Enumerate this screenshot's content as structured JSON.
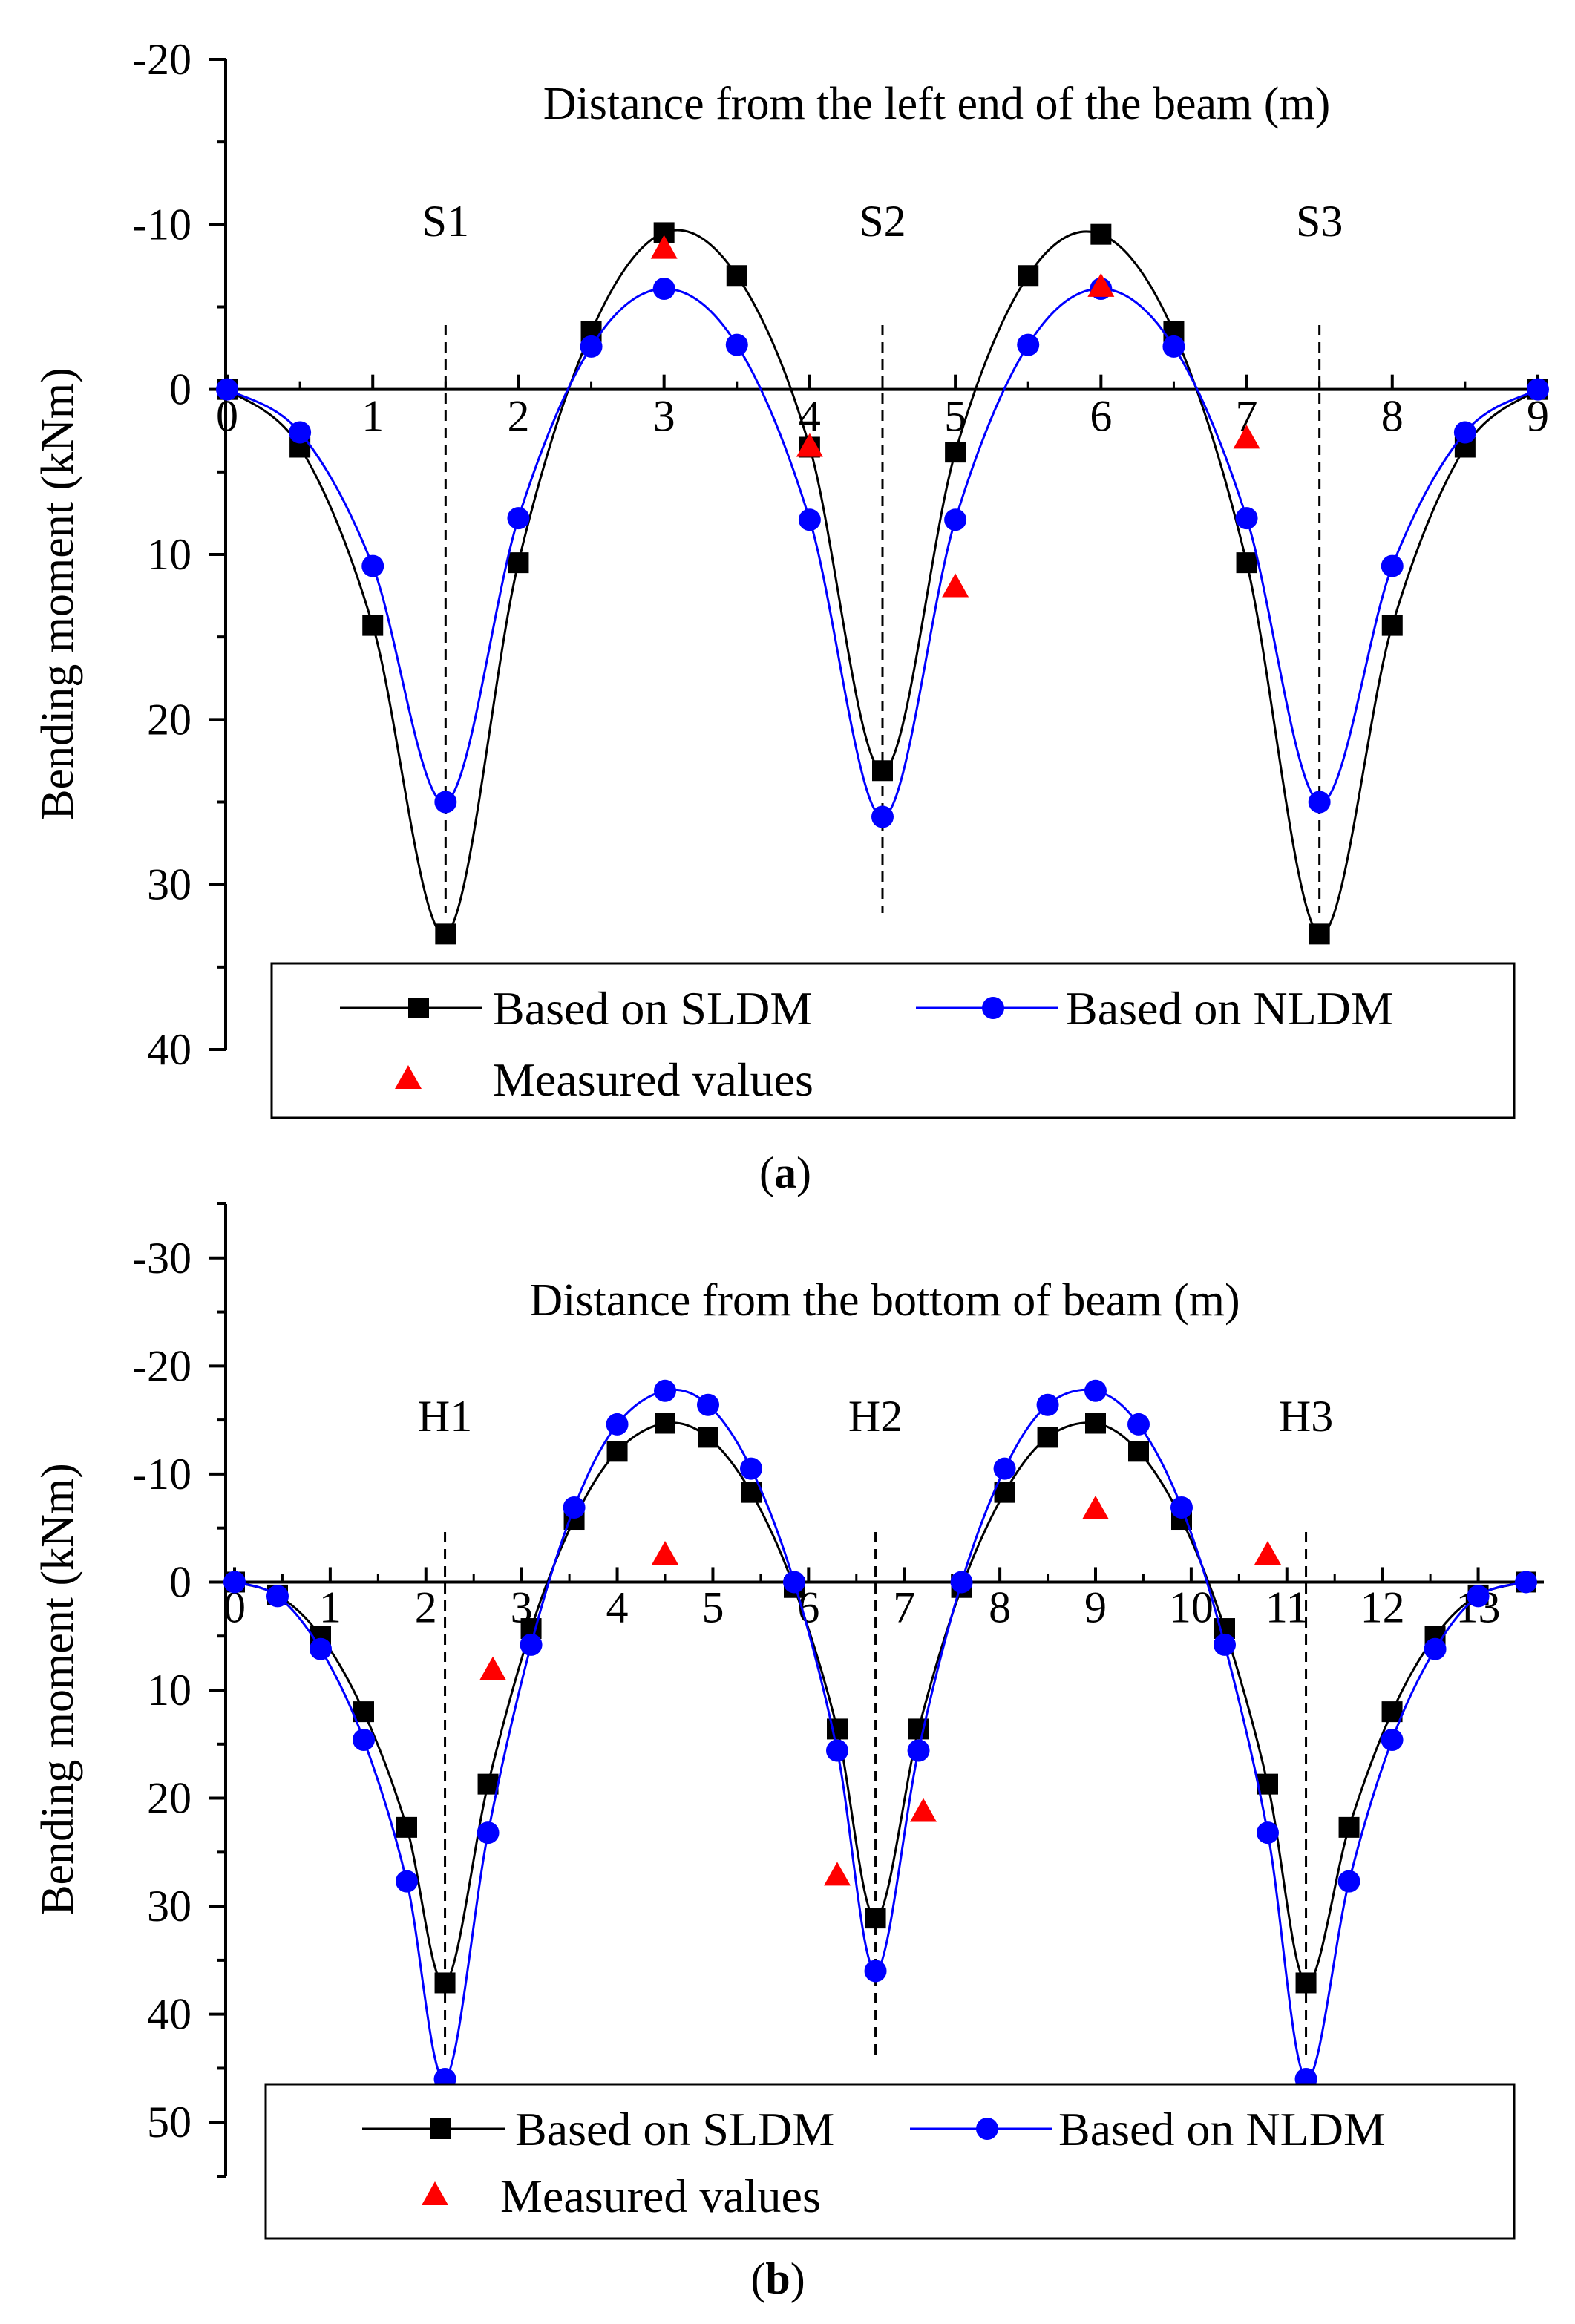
{
  "chart_data": [
    {
      "panel_label": "a",
      "type": "line",
      "title": "Distance from the left end of the beam (m)",
      "xlabel": "Distance from the left end of the beam (m)",
      "ylabel": "Bending moment (kNm)",
      "xlim": [
        0,
        9
      ],
      "ylim": [
        40,
        -20
      ],
      "y_inverted": true,
      "x_ticks": [
        0,
        1,
        2,
        3,
        4,
        5,
        6,
        7,
        8,
        9
      ],
      "y_ticks": [
        -20,
        -10,
        0,
        10,
        20,
        30,
        40
      ],
      "supports": [
        {
          "label": "S1",
          "x": 1.5
        },
        {
          "label": "S2",
          "x": 4.5
        },
        {
          "label": "S3",
          "x": 7.5
        }
      ],
      "legend": {
        "sldm": "Based on SLDM",
        "nldm": "Based on NLDM",
        "measured": "Measured values"
      },
      "series": [
        {
          "name": "Based on SLDM",
          "color": "#000000",
          "marker": "square",
          "x": [
            0,
            0.5,
            1,
            1.5,
            2,
            2.5,
            3,
            3.5,
            4,
            4.5,
            5,
            5.5,
            6,
            6.5,
            7,
            7.5,
            8,
            8.5,
            9
          ],
          "values": [
            0,
            3.5,
            14.3,
            33,
            10.5,
            -3.5,
            -9.5,
            -6.9,
            3.5,
            23.1,
            3.8,
            -6.9,
            -9.4,
            -3.5,
            10.5,
            33,
            14.3,
            3.5,
            0
          ]
        },
        {
          "name": "Based on NLDM",
          "color": "#0000ff",
          "marker": "circle",
          "x": [
            0,
            0.5,
            1,
            1.5,
            2,
            2.5,
            3,
            3.5,
            4,
            4.5,
            5,
            5.5,
            6,
            6.5,
            7,
            7.5,
            8,
            8.5,
            9
          ],
          "values": [
            0,
            2.6,
            10.7,
            25,
            7.8,
            -2.6,
            -6.1,
            -2.7,
            7.9,
            25.9,
            7.9,
            -2.7,
            -6.1,
            -2.6,
            7.8,
            25,
            10.7,
            2.6,
            0
          ]
        },
        {
          "name": "Measured values",
          "color": "#ff0000",
          "marker": "triangle",
          "x": [
            3,
            4,
            5,
            6,
            7
          ],
          "values": [
            -8.5,
            3.5,
            12,
            -6.2,
            3
          ]
        }
      ],
      "caption": "(a)"
    },
    {
      "panel_label": "b",
      "type": "line",
      "title": "Distance from the bottom of beam (m)",
      "xlabel": "Distance from the bottom of beam (m)",
      "ylabel": "Bending moment (kNm)",
      "xlim": [
        0,
        13.5
      ],
      "ylim": [
        55,
        -35
      ],
      "y_inverted": true,
      "x_ticks": [
        0,
        1,
        2,
        3,
        4,
        5,
        6,
        7,
        8,
        9,
        10,
        11,
        12,
        13
      ],
      "y_ticks": [
        -30,
        -20,
        -10,
        0,
        10,
        20,
        30,
        40,
        50
      ],
      "supports": [
        {
          "label": "H1",
          "x": 2.2
        },
        {
          "label": "H2",
          "x": 6.7
        },
        {
          "label": "H3",
          "x": 11.2
        }
      ],
      "legend": {
        "sldm": "Based on SLDM",
        "nldm": "Based on NLDM",
        "measured": "Measured values"
      },
      "series": [
        {
          "name": "Based on SLDM",
          "color": "#000000",
          "marker": "square",
          "x": [
            0,
            0.45,
            0.9,
            1.35,
            1.8,
            2.2,
            2.65,
            3.1,
            3.55,
            4.0,
            4.5,
            4.95,
            5.4,
            5.85,
            6.3,
            6.7,
            7.15,
            7.6,
            8.05,
            8.5,
            9.0,
            9.45,
            9.9,
            10.35,
            10.8,
            11.2,
            11.65,
            12.1,
            12.55,
            13.0,
            13.5
          ],
          "values": [
            0,
            1.2,
            5,
            12,
            22.7,
            37.1,
            18.7,
            4.3,
            -5.8,
            -12.1,
            -14.7,
            -13.4,
            -8.3,
            0.5,
            13.6,
            31.1,
            13.6,
            0.5,
            -8.3,
            -13.4,
            -14.7,
            -12.1,
            -5.8,
            4.3,
            18.7,
            37.1,
            22.7,
            12,
            5,
            1.2,
            0
          ]
        },
        {
          "name": "Based on NLDM",
          "color": "#0000ff",
          "marker": "circle",
          "x": [
            0,
            0.45,
            0.9,
            1.35,
            1.8,
            2.2,
            2.65,
            3.1,
            3.55,
            4.0,
            4.5,
            4.95,
            5.4,
            5.85,
            6.3,
            6.7,
            7.15,
            7.6,
            8.05,
            8.5,
            9.0,
            9.45,
            9.9,
            10.35,
            10.8,
            11.2,
            11.65,
            12.1,
            12.55,
            13.0,
            13.5
          ],
          "values": [
            0,
            1.3,
            6.2,
            14.6,
            27.7,
            46,
            23.2,
            5.8,
            -6.9,
            -14.6,
            -17.7,
            -16.4,
            -10.5,
            0,
            15.6,
            36,
            15.6,
            0,
            -10.5,
            -16.4,
            -17.7,
            -14.6,
            -6.9,
            5.8,
            23.2,
            46,
            27.7,
            14.6,
            6.2,
            1.3,
            0
          ]
        },
        {
          "name": "Measured values",
          "color": "#ff0000",
          "marker": "triangle",
          "x": [
            2.7,
            4.5,
            6.3,
            7.2,
            9.0,
            10.8
          ],
          "values": [
            8.2,
            -2.5,
            27.2,
            21.3,
            -6.7,
            -2.5
          ]
        }
      ],
      "caption": "(b)"
    }
  ]
}
